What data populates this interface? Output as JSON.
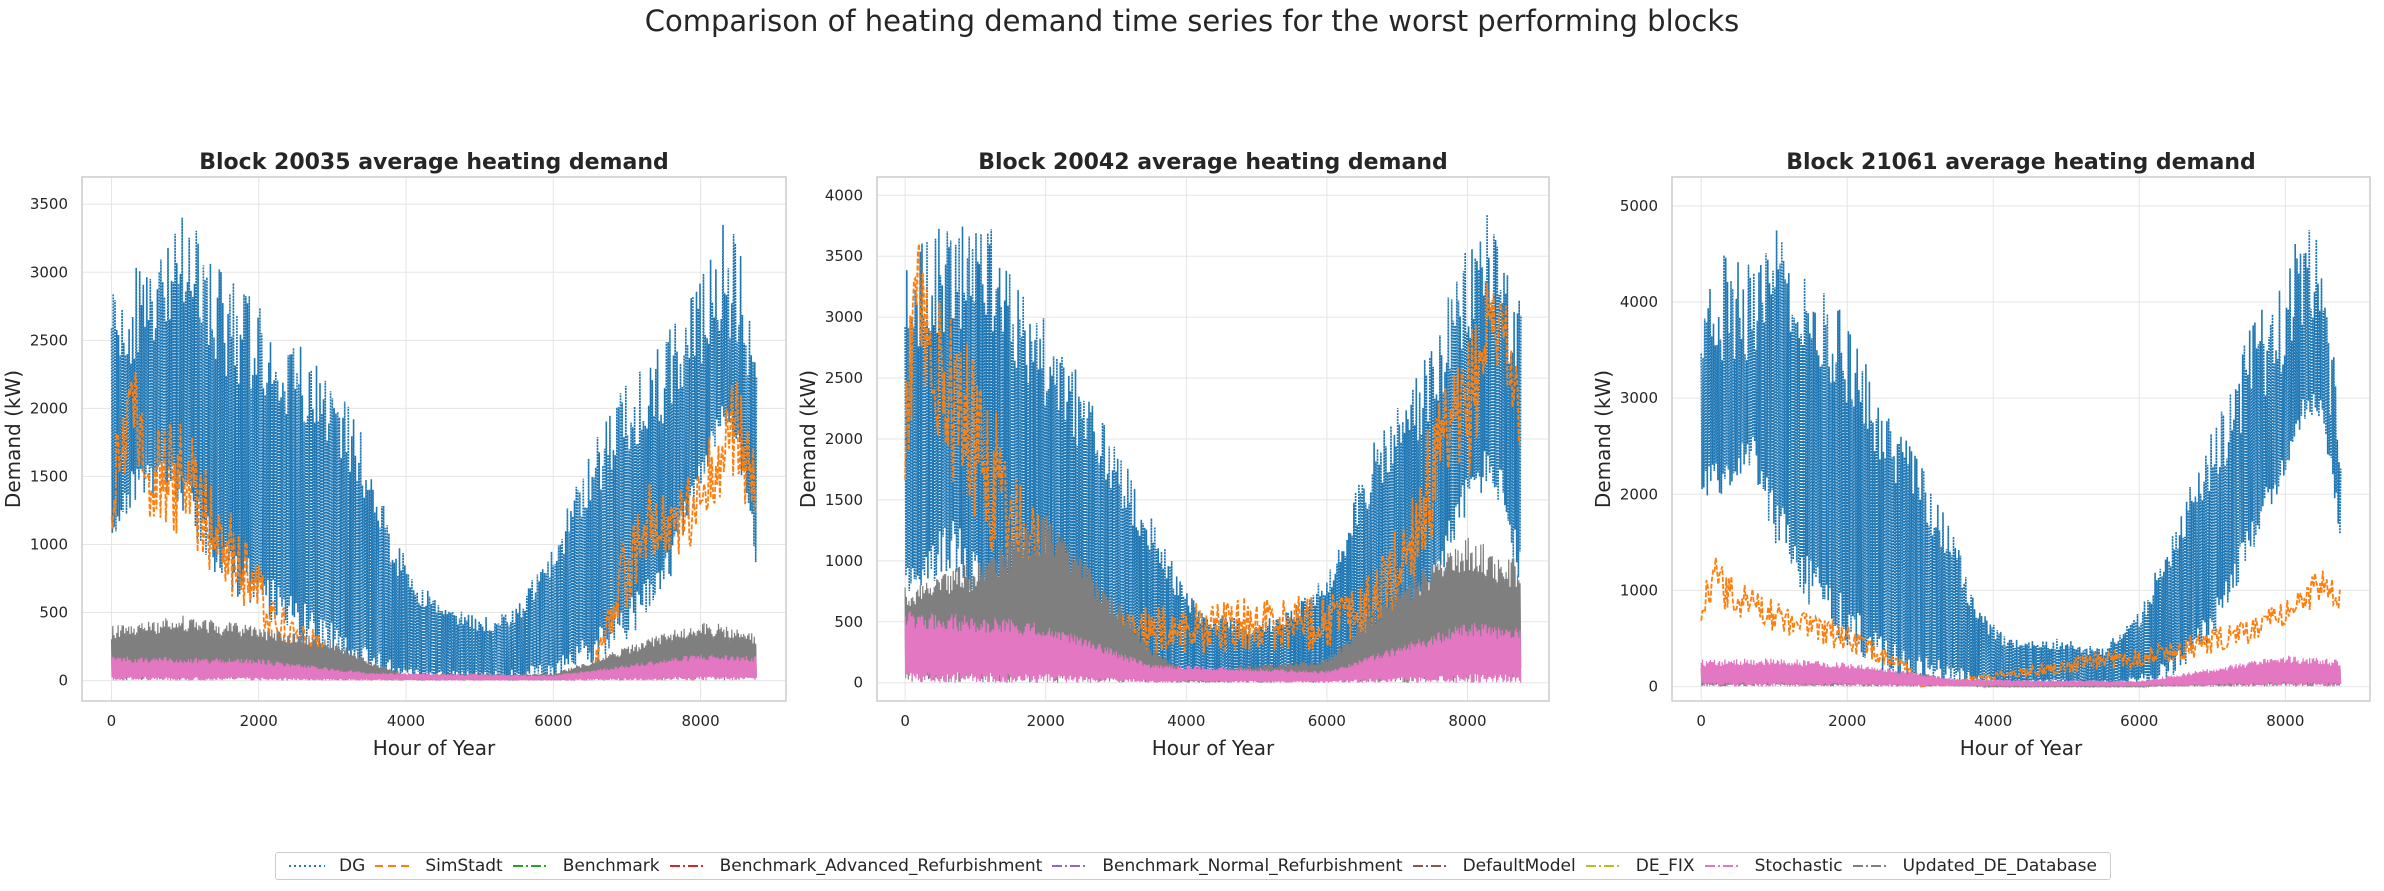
{
  "suptitle": "Comparison of heating demand time series for the worst performing blocks",
  "legend": [
    {
      "name": "DG",
      "color": "#1f77b4",
      "dash": "2,3"
    },
    {
      "name": "SimStadt",
      "color": "#ff7f0e",
      "dash": "8,5"
    },
    {
      "name": "Benchmark",
      "color": "#2ca02c",
      "dash": "10,3,2,3"
    },
    {
      "name": "Benchmark_Advanced_Refurbishment",
      "color": "#d62728",
      "dash": "10,3,2,3"
    },
    {
      "name": "Benchmark_Normal_Refurbishment",
      "color": "#9467bd",
      "dash": "10,3,2,3"
    },
    {
      "name": "DefaultModel",
      "color": "#8c564b",
      "dash": "10,3,2,3"
    },
    {
      "name": "DE_FIX",
      "color": "#bcbd22",
      "dash": "10,3,2,3"
    },
    {
      "name": "Stochastic",
      "color": "#e377c2",
      "dash": "10,3,2,3"
    },
    {
      "name": "Updated_DE_Database",
      "color": "#7f7f7f",
      "dash": "10,3,2,3"
    }
  ],
  "chart_data": [
    {
      "type": "line",
      "title": "Block 20035 average heating demand",
      "xlabel": "Hour of Year",
      "ylabel": "Demand (kW)",
      "xlim": [
        -400,
        9160
      ],
      "ylim": [
        -150,
        3700
      ],
      "xticks": [
        0,
        2000,
        4000,
        6000,
        8000
      ],
      "yticks": [
        0,
        500,
        1000,
        1500,
        2000,
        2500,
        3000,
        3500
      ],
      "grid": true,
      "series": [
        {
          "name": "DG",
          "color": "#1f77b4",
          "x": [
            0,
            300,
            700,
            1000,
            1500,
            2000,
            2500,
            3000,
            3500,
            3800,
            4200,
            5000,
            5500,
            6000,
            6500,
            7000,
            7500,
            8000,
            8300,
            8500,
            8760
          ],
          "envelope_max": [
            2900,
            3100,
            3200,
            3500,
            3000,
            2800,
            2500,
            2300,
            1700,
            1100,
            700,
            450,
            550,
            1000,
            1700,
            2200,
            2500,
            3000,
            3450,
            3250,
            2600
          ],
          "envelope_min": [
            1000,
            1300,
            1400,
            1200,
            700,
            500,
            300,
            100,
            0,
            0,
            0,
            0,
            0,
            0,
            100,
            300,
            600,
            1400,
            1800,
            1700,
            800
          ]
        },
        {
          "name": "SimStadt",
          "color": "#ff7f0e",
          "x": [
            0,
            250,
            500,
            1000,
            1500,
            2000,
            2500,
            2800,
            3000,
            6500,
            6800,
            7000,
            7300,
            7600,
            8000,
            8300,
            8500,
            8760
          ],
          "envelope_max": [
            1700,
            2500,
            1900,
            1900,
            1400,
            900,
            400,
            400,
            0,
            0,
            800,
            1100,
            1500,
            1300,
            1700,
            2000,
            2300,
            1600
          ],
          "envelope_min": [
            600,
            1300,
            700,
            600,
            300,
            100,
            0,
            100,
            0,
            0,
            100,
            200,
            400,
            400,
            800,
            1000,
            800,
            900
          ]
        },
        {
          "name": "Updated_DE_Database",
          "color": "#7f7f7f",
          "x": [
            0,
            1000,
            2000,
            3000,
            3500,
            4000,
            6000,
            7000,
            8000,
            8760
          ],
          "envelope_max": [
            400,
            480,
            400,
            300,
            150,
            50,
            50,
            250,
            450,
            350
          ],
          "envelope_min": [
            0,
            0,
            0,
            0,
            0,
            0,
            0,
            0,
            0,
            0
          ]
        },
        {
          "name": "Stochastic",
          "color": "#e377c2",
          "x": [
            0,
            2000,
            3500,
            6000,
            8000,
            8760
          ],
          "envelope_max": [
            180,
            160,
            60,
            40,
            200,
            180
          ],
          "envelope_min": [
            0,
            0,
            0,
            0,
            0,
            0
          ]
        }
      ]
    },
    {
      "type": "line",
      "title": "Block 20042 average heating demand",
      "xlabel": "Hour of Year",
      "ylabel": "Demand (kW)",
      "xlim": [
        -400,
        9160
      ],
      "ylim": [
        -150,
        4150
      ],
      "xticks": [
        0,
        2000,
        4000,
        6000,
        8000
      ],
      "yticks": [
        0,
        500,
        1000,
        1500,
        2000,
        2500,
        3000,
        3500,
        4000
      ],
      "grid": true,
      "series": [
        {
          "name": "DG",
          "color": "#1f77b4",
          "x": [
            0,
            300,
            700,
            1000,
            1500,
            2000,
            2500,
            3000,
            3500,
            3800,
            4200,
            5000,
            5500,
            6000,
            6500,
            7000,
            7500,
            8000,
            8300,
            8500,
            8760
          ],
          "envelope_max": [
            3400,
            3700,
            3800,
            4000,
            3400,
            3000,
            2500,
            2000,
            1400,
            1000,
            600,
            500,
            600,
            900,
            1800,
            2300,
            2800,
            3600,
            4000,
            3700,
            3100
          ],
          "envelope_min": [
            500,
            800,
            900,
            700,
            400,
            200,
            0,
            0,
            0,
            0,
            0,
            0,
            0,
            0,
            100,
            300,
            700,
            1400,
            1600,
            1400,
            700
          ]
        },
        {
          "name": "SimStadt",
          "color": "#ff7f0e",
          "x": [
            0,
            200,
            400,
            700,
            1000,
            1500,
            2000,
            2500,
            3000,
            6500,
            7000,
            7500,
            8000,
            8300,
            8500,
            8760
          ],
          "envelope_max": [
            2800,
            3800,
            3400,
            3000,
            2700,
            2000,
            1400,
            900,
            600,
            800,
            1300,
            2200,
            2800,
            3500,
            3300,
            2400
          ],
          "envelope_min": [
            700,
            1500,
            1000,
            700,
            500,
            200,
            0,
            0,
            0,
            0,
            100,
            500,
            1000,
            1800,
            2300,
            1500
          ]
        },
        {
          "name": "Updated_DE_Database",
          "color": "#7f7f7f",
          "x": [
            0,
            1000,
            2000,
            3000,
            3500,
            4000,
            6000,
            7000,
            8000,
            8760
          ],
          "envelope_max": [
            800,
            1000,
            1400,
            700,
            300,
            100,
            200,
            800,
            1200,
            1000
          ],
          "envelope_min": [
            0,
            0,
            0,
            0,
            0,
            0,
            0,
            0,
            0,
            0
          ]
        },
        {
          "name": "Stochastic",
          "color": "#e377c2",
          "x": [
            0,
            2000,
            3500,
            6000,
            8000,
            8760
          ],
          "envelope_max": [
            600,
            500,
            150,
            100,
            500,
            450
          ],
          "envelope_min": [
            0,
            0,
            0,
            0,
            0,
            0
          ]
        }
      ]
    },
    {
      "type": "line",
      "title": "Block 21061 average heating demand",
      "xlabel": "Hour of Year",
      "ylabel": "Demand (kW)",
      "xlim": [
        -400,
        9160
      ],
      "ylim": [
        -150,
        5300
      ],
      "xticks": [
        0,
        2000,
        4000,
        6000,
        8000
      ],
      "yticks": [
        0,
        1000,
        2000,
        3000,
        4000,
        5000
      ],
      "grid": true,
      "series": [
        {
          "name": "DG",
          "color": "#1f77b4",
          "x": [
            0,
            300,
            700,
            1000,
            1500,
            2000,
            2500,
            3000,
            3500,
            3800,
            4200,
            5000,
            5500,
            6000,
            6500,
            7000,
            7500,
            8000,
            8300,
            8500,
            8760
          ],
          "envelope_max": [
            4200,
            4500,
            4400,
            5000,
            4400,
            3800,
            3000,
            2400,
            1500,
            800,
            500,
            500,
            400,
            800,
            1700,
            2700,
            3700,
            4400,
            5100,
            4400,
            2900
          ],
          "envelope_min": [
            1900,
            2000,
            2300,
            1500,
            800,
            400,
            100,
            0,
            0,
            0,
            0,
            0,
            0,
            0,
            100,
            500,
            1300,
            2200,
            2800,
            2800,
            1500
          ]
        },
        {
          "name": "SimStadt",
          "color": "#ff7f0e",
          "x": [
            0,
            200,
            500,
            1000,
            1500,
            2000,
            2500,
            2800,
            3000,
            6500,
            7000,
            7500,
            8000,
            8300,
            8500,
            8760
          ],
          "envelope_max": [
            1000,
            1350,
            1100,
            900,
            750,
            650,
            400,
            300,
            0,
            500,
            600,
            700,
            900,
            1100,
            1250,
            1000
          ],
          "envelope_min": [
            500,
            600,
            500,
            400,
            300,
            200,
            100,
            100,
            0,
            100,
            200,
            300,
            500,
            600,
            700,
            600
          ]
        },
        {
          "name": "Updated_DE_Database",
          "color": "#7f7f7f",
          "x": [
            0,
            1000,
            2000,
            3000,
            3500,
            4000,
            6000,
            7000,
            8000,
            8760
          ],
          "envelope_max": [
            200,
            230,
            200,
            150,
            60,
            20,
            20,
            150,
            250,
            200
          ],
          "envelope_min": [
            0,
            0,
            0,
            0,
            0,
            0,
            0,
            0,
            0,
            0
          ]
        },
        {
          "name": "Stochastic",
          "color": "#e377c2",
          "x": [
            0,
            1000,
            2000,
            3500,
            6000,
            8000,
            8760
          ],
          "envelope_max": [
            280,
            300,
            250,
            80,
            60,
            330,
            280
          ],
          "envelope_min": [
            0,
            0,
            0,
            0,
            0,
            0,
            0
          ]
        }
      ]
    }
  ]
}
